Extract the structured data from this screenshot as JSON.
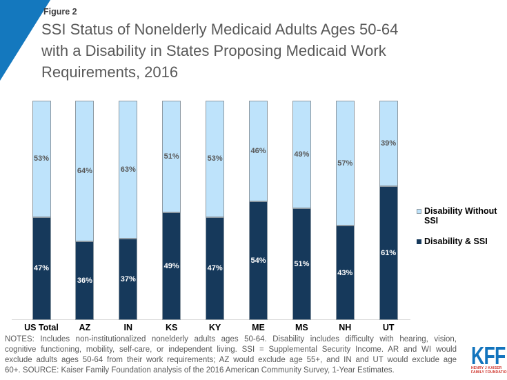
{
  "header": {
    "figure_label": "Figure 2",
    "title_lines": [
      "SSI Status of Nonelderly Medicaid Adults Ages 50-64",
      "with a Disability in States Proposing Medicaid Work",
      "Requirements, 2016"
    ]
  },
  "chart_data": {
    "type": "bar",
    "subtype": "stacked-100-percent",
    "categories": [
      "US Total",
      "AZ",
      "IN",
      "KS",
      "KY",
      "ME",
      "MS",
      "NH",
      "UT"
    ],
    "series": [
      {
        "name": "Disability & SSI",
        "color": "#16395b",
        "label_color": "#ffffff",
        "values": [
          47,
          36,
          37,
          49,
          47,
          54,
          51,
          43,
          61
        ]
      },
      {
        "name": "Disability Without SSI",
        "color": "#bee3fb",
        "label_color": "#595959",
        "values": [
          53,
          64,
          63,
          51,
          53,
          46,
          49,
          57,
          39
        ]
      }
    ],
    "value_suffix": "%",
    "ylim": [
      0,
      100
    ],
    "grid": false,
    "legend_position": "right"
  },
  "legend": {
    "items": [
      {
        "label": "Disability Without SSI",
        "color": "#bee3fb"
      },
      {
        "label": "Disability & SSI",
        "color": "#16395b"
      }
    ]
  },
  "notes": {
    "lines": [
      "NOTES: Includes non-institutionalized nonelderly adults ages 50-64. Disability includes difficulty with hearing, vision,",
      "cognitive functioning, mobility, self-care, or independent living. SSI = Supplemental Security Income.  AR and WI would",
      "exclude adults ages 50-64 from their work requirements; AZ would exclude age 55+, and IN and UT would exclude age",
      "60+.  SOURCE: Kaiser Family Foundation analysis of the 2016 American Community Survey, 1-Year Estimates."
    ]
  },
  "footer": {
    "logo_text": "KFF",
    "logo_tagline_lines": [
      "HENRY J KAISER",
      "FAMILY FOUNDATION"
    ]
  },
  "theme": {
    "accent_blue": "#1478be",
    "title_gray": "#595959",
    "kff_blue": "#1374bd",
    "kff_red": "#ce2f27",
    "axis_line_gray": "#d9d9d9",
    "bar_border_gray": "#8e9aa3"
  }
}
